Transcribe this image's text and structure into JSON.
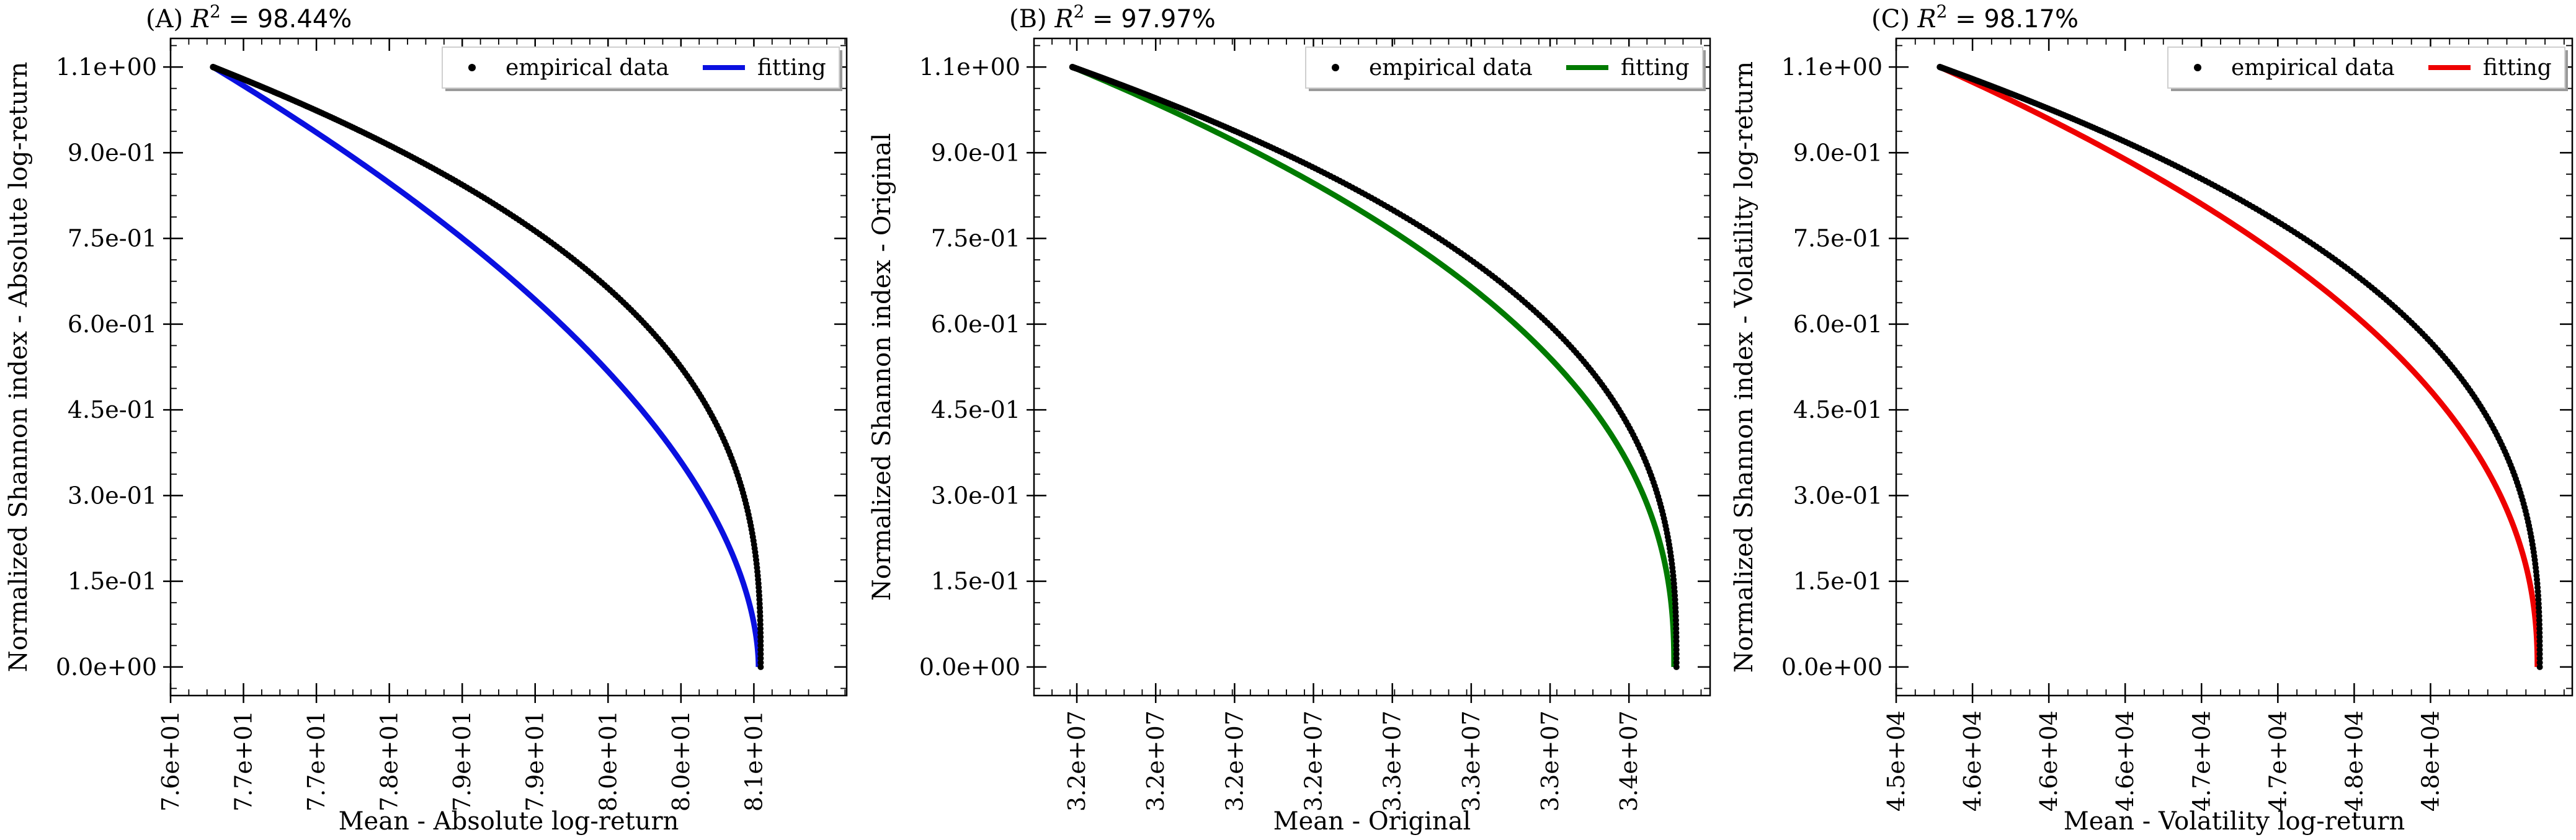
{
  "chart_data": [
    {
      "type": "line",
      "title_prefix": "(A) ",
      "title_r2": "R",
      "title_sup": "2",
      "title_value": " = 98.44%",
      "xlabel": "Mean - Absolute log-return",
      "ylabel": "Normalized Shannon index - Absolute log-return",
      "xlim": [
        76.2,
        81.3
      ],
      "ylim": [
        -0.05,
        1.1
      ],
      "x_ticks": [
        76.2,
        76.75,
        77.3,
        77.85,
        78.4,
        78.95,
        79.5,
        80.05,
        80.6,
        81.15
      ],
      "x_tick_labels": [
        "7.6e+01",
        "7.7e+01",
        "7.7e+01",
        "7.8e+01",
        "7.9e+01",
        "7.9e+01",
        "8.0e+01",
        "8.0e+01",
        "8.1e+01"
      ],
      "x_tick_label_positions": [
        76.2,
        76.75,
        77.3,
        77.85,
        78.4,
        78.95,
        79.5,
        80.05,
        80.6
      ],
      "y_ticks": [
        0.0,
        0.15,
        0.3,
        0.45,
        0.6,
        0.75,
        0.9,
        1.05
      ],
      "y_tick_labels": [
        "0.0e+00",
        "1.5e-01",
        "3.0e-01",
        "4.5e-01",
        "6.0e-01",
        "7.5e-01",
        "9.0e-01",
        "1.1e+00"
      ],
      "x_min": 76.52,
      "x_max": 80.635,
      "empirical_shape": 1.0,
      "fit_exponent": 0.55,
      "legend": [
        "empirical data",
        "fitting"
      ],
      "legend_position": "upper-right",
      "fit_color": "#0a10e0",
      "data_color": "#000000"
    },
    {
      "type": "line",
      "title_prefix": "(B) ",
      "title_r2": "R",
      "title_sup": "2",
      "title_value": " = 97.97%",
      "xlabel": "Mean - Original",
      "ylabel": "Normalized Shannon index - Original",
      "xlim": [
        31.55,
        34.55
      ],
      "ylim": [
        -0.05,
        1.1
      ],
      "x_ticks": [
        31.65,
        31.97,
        32.29,
        32.61,
        32.93,
        33.25,
        33.57,
        33.89,
        34.21
      ],
      "x_tick_labels": [
        "3.2e+07",
        "3.2e+07",
        "3.2e+07",
        "3.2e+07",
        "3.3e+07",
        "3.3e+07",
        "3.3e+07",
        "3.4e+07",
        "3.4e+07"
      ],
      "x_tick_label_positions": [
        31.74,
        32.09,
        32.44,
        32.79,
        33.14,
        33.49,
        33.84,
        34.19
      ],
      "y_ticks": [
        0.0,
        0.15,
        0.3,
        0.45,
        0.6,
        0.75,
        0.9,
        1.05
      ],
      "y_tick_labels": [
        "0.0e+00",
        "1.5e-01",
        "3.0e-01",
        "4.5e-01",
        "6.0e-01",
        "7.5e-01",
        "9.0e-01",
        "1.1e+00"
      ],
      "x_min": 31.72,
      "x_max": 34.39,
      "empirical_shape": 0.78,
      "fit_exponent": 0.42,
      "legend": [
        "empirical data",
        "fitting"
      ],
      "legend_position": "upper-right",
      "fit_color": "#007a00",
      "data_color": "#000000"
    },
    {
      "type": "line",
      "title_prefix": "(C) ",
      "title_r2": "R",
      "title_sup": "2",
      "title_value": " = 98.17%",
      "xlabel": "Mean - Volatility log-return",
      "ylabel": "Normalized Shannon index - Volatility log-return",
      "xlim": [
        45.5,
        48.6
      ],
      "ylim": [
        -0.05,
        1.1
      ],
      "x_ticks": [
        45.5,
        45.85,
        46.2,
        46.55,
        46.9,
        47.25,
        47.6,
        47.95,
        48.3
      ],
      "x_tick_labels": [
        "4.5e+04",
        "4.6e+04",
        "4.6e+04",
        "4.6e+04",
        "4.7e+04",
        "4.7e+04",
        "4.8e+04",
        "4.8e+04"
      ],
      "x_tick_label_positions": [
        45.5,
        45.85,
        46.2,
        46.55,
        46.9,
        47.25,
        47.6,
        47.95
      ],
      "y_ticks": [
        0.0,
        0.15,
        0.3,
        0.45,
        0.6,
        0.75,
        0.9,
        1.05
      ],
      "y_tick_labels": [
        "0.0e+00",
        "1.5e-01",
        "3.0e-01",
        "4.5e-01",
        "6.0e-01",
        "7.5e-01",
        "9.0e-01",
        "1.1e+00"
      ],
      "x_min": 45.7,
      "x_max": 48.44,
      "empirical_shape": 0.8,
      "fit_exponent": 0.45,
      "legend": [
        "empirical data",
        "fitting"
      ],
      "legend_position": "upper-right",
      "fit_color": "#ee0000",
      "data_color": "#000000"
    }
  ]
}
